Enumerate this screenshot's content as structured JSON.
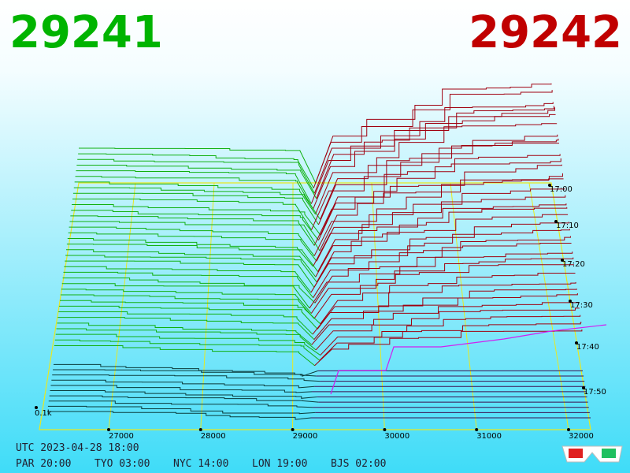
{
  "header": {
    "bid": "29241",
    "ask": "29242"
  },
  "axis": {
    "price_ticks": [
      "27000",
      "28000",
      "29000",
      "30000",
      "31000",
      "32000"
    ],
    "time_ticks": [
      "17:00",
      "17:10",
      "17:20",
      "17:30",
      "17:40",
      "17:50"
    ],
    "depth_label": "0.1k"
  },
  "footer": {
    "utc": "UTC 2023-04-28 18:00",
    "clocks": [
      "PAR 20:00",
      "TYO 03:00",
      "NYC 14:00",
      "LON 19:00",
      "BJS 02:00"
    ]
  }
}
